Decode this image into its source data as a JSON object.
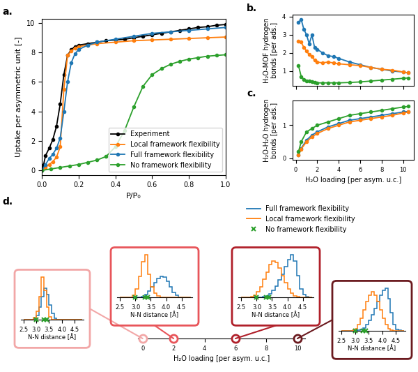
{
  "chart_data": [
    {
      "type": "line",
      "title": "a.",
      "xlabel": "P/P₀",
      "ylabel": "Uptake per asymmetric unit [-]",
      "xlim": [
        0.0,
        1.0
      ],
      "ylim": [
        -0.3,
        10.3
      ],
      "xticks": [
        0.0,
        0.2,
        0.4,
        0.6,
        0.8,
        1.0
      ],
      "yticks": [
        0,
        2,
        4,
        6,
        8,
        10
      ],
      "legend": "lower right",
      "series": [
        {
          "name": "Experiment",
          "color": "#000000",
          "marker": "o",
          "x": [
            0,
            0.01,
            0.02,
            0.04,
            0.06,
            0.08,
            0.1,
            0.12,
            0.14,
            0.16,
            0.18,
            0.2,
            0.25,
            0.3,
            0.35,
            0.4,
            0.45,
            0.5,
            0.55,
            0.6,
            0.65,
            0.7,
            0.75,
            0.8,
            0.85,
            0.9,
            0.95,
            1.0
          ],
          "values": [
            0,
            0.4,
            1.0,
            1.5,
            2.1,
            3.0,
            4.5,
            6.5,
            7.8,
            8.2,
            8.4,
            8.5,
            8.6,
            8.7,
            8.8,
            8.85,
            8.9,
            9.0,
            9.1,
            9.2,
            9.3,
            9.4,
            9.5,
            9.6,
            9.7,
            9.75,
            9.85,
            9.9
          ]
        },
        {
          "name": "Local framework flexibility",
          "color": "#ff7f0e",
          "marker": "o",
          "x": [
            0,
            0.02,
            0.04,
            0.06,
            0.08,
            0.1,
            0.12,
            0.14,
            0.16,
            0.18,
            0.2,
            0.25,
            0.3,
            0.4,
            0.5,
            0.6,
            0.7,
            0.8,
            0.9,
            1.0
          ],
          "values": [
            0,
            0.2,
            0.4,
            0.6,
            0.9,
            1.6,
            5.5,
            7.8,
            8.1,
            8.3,
            8.4,
            8.5,
            8.6,
            8.7,
            8.8,
            8.85,
            8.9,
            8.95,
            9.0,
            9.05
          ]
        },
        {
          "name": "Full framework flexibility",
          "color": "#1f77b4",
          "marker": "o",
          "x": [
            0,
            0.02,
            0.04,
            0.06,
            0.08,
            0.1,
            0.12,
            0.14,
            0.16,
            0.18,
            0.2,
            0.25,
            0.3,
            0.4,
            0.5,
            0.6,
            0.7,
            0.8,
            0.9,
            1.0
          ],
          "values": [
            0,
            0.4,
            0.8,
            1.1,
            1.5,
            2.2,
            4.0,
            6.0,
            7.3,
            7.9,
            8.2,
            8.5,
            8.7,
            8.9,
            9.1,
            9.3,
            9.4,
            9.5,
            9.6,
            9.7
          ]
        },
        {
          "name": "No framework flexibility",
          "color": "#2ca02c",
          "marker": "o",
          "x": [
            0,
            0.05,
            0.1,
            0.15,
            0.2,
            0.25,
            0.3,
            0.35,
            0.4,
            0.45,
            0.5,
            0.55,
            0.6,
            0.65,
            0.7,
            0.75,
            0.8,
            0.85,
            0.9,
            0.95,
            1.0
          ],
          "values": [
            0,
            0.1,
            0.2,
            0.3,
            0.4,
            0.55,
            0.7,
            0.95,
            1.6,
            2.7,
            4.3,
            5.7,
            6.5,
            6.9,
            7.2,
            7.4,
            7.55,
            7.65,
            7.75,
            7.8,
            7.85
          ]
        }
      ]
    },
    {
      "type": "line",
      "title": "b.",
      "ylabel": "H₂O-MOF hydrogen\nbonds [per ads.]",
      "xlim": [
        -0.3,
        11
      ],
      "ylim": [
        0.2,
        4.1
      ],
      "xticks": [
        0,
        2,
        4,
        6,
        8,
        10
      ],
      "yticks": [
        1,
        2,
        3,
        4
      ],
      "tick_labels": "y",
      "series": [
        {
          "color": "#1f77b4",
          "marker": "o",
          "x": [
            0.25,
            0.5,
            0.75,
            1,
            1.25,
            1.5,
            1.75,
            2,
            2.5,
            3,
            3.5,
            4,
            5,
            6,
            7,
            8,
            9,
            10,
            10.5
          ],
          "values": [
            3.7,
            3.85,
            3.3,
            3.0,
            2.5,
            3.0,
            2.3,
            2.2,
            2.0,
            1.85,
            1.8,
            1.7,
            1.5,
            1.35,
            1.2,
            1.1,
            1.0,
            0.95,
            0.9
          ]
        },
        {
          "color": "#ff7f0e",
          "marker": "o",
          "x": [
            0.25,
            0.5,
            0.75,
            1,
            1.25,
            1.5,
            1.75,
            2,
            2.5,
            3,
            3.5,
            4,
            5,
            6,
            7,
            8,
            9,
            10,
            10.5
          ],
          "values": [
            2.65,
            2.6,
            2.3,
            2.1,
            1.9,
            1.8,
            1.6,
            1.5,
            1.45,
            1.5,
            1.45,
            1.4,
            1.35,
            1.3,
            1.2,
            1.1,
            1.05,
            0.95,
            0.9
          ]
        },
        {
          "color": "#2ca02c",
          "marker": "o",
          "x": [
            0.25,
            0.5,
            0.75,
            1,
            1.25,
            1.5,
            1.75,
            2,
            2.5,
            3,
            3.5,
            4,
            5,
            6,
            7,
            8,
            9,
            10,
            10.5
          ],
          "values": [
            1.3,
            0.7,
            0.55,
            0.45,
            0.45,
            0.4,
            0.38,
            0.35,
            0.35,
            0.35,
            0.35,
            0.35,
            0.37,
            0.4,
            0.45,
            0.5,
            0.55,
            0.6,
            0.62
          ]
        }
      ]
    },
    {
      "type": "line",
      "title": "c.",
      "xlabel": "H₂O loading [per asym. u.c.]",
      "ylabel": "H₂O-H₂O hydrogen\nbonds [per ads.]",
      "xlim": [
        -0.3,
        11
      ],
      "ylim": [
        -0.05,
        1.75
      ],
      "xticks": [
        0,
        2,
        4,
        6,
        8,
        10
      ],
      "yticks": [
        0,
        1
      ],
      "series": [
        {
          "color": "#1f77b4",
          "marker": "o",
          "x": [
            0.25,
            0.5,
            1,
            1.5,
            2,
            3,
            4,
            5,
            6,
            7,
            8,
            9,
            10,
            10.5
          ],
          "values": [
            0.1,
            0.3,
            0.55,
            0.7,
            0.8,
            0.95,
            1.05,
            1.15,
            1.2,
            1.25,
            1.3,
            1.35,
            1.4,
            1.42
          ]
        },
        {
          "color": "#ff7f0e",
          "marker": "o",
          "x": [
            0.25,
            0.5,
            1,
            1.5,
            2,
            3,
            4,
            5,
            6,
            7,
            8,
            9,
            10,
            10.5
          ],
          "values": [
            0.1,
            0.28,
            0.5,
            0.65,
            0.75,
            0.9,
            1.0,
            1.1,
            1.15,
            1.2,
            1.25,
            1.3,
            1.37,
            1.4
          ]
        },
        {
          "color": "#2ca02c",
          "marker": "o",
          "x": [
            0.25,
            0.5,
            1,
            1.5,
            2,
            3,
            4,
            5,
            6,
            7,
            8,
            9,
            10,
            10.5
          ],
          "values": [
            0.2,
            0.5,
            0.8,
            0.9,
            1.0,
            1.1,
            1.2,
            1.3,
            1.35,
            1.4,
            1.45,
            1.5,
            1.55,
            1.57
          ]
        }
      ]
    },
    {
      "type": "histogram_panel",
      "title": "d.",
      "xlabel": "H₂O loading [per asym. u.c.]",
      "xlim": [
        -0.3,
        10.5
      ],
      "xticks": [
        0,
        2,
        4,
        6,
        8,
        10
      ],
      "legend": "upper center",
      "bins": [
        2.5,
        2.6,
        2.7,
        2.8,
        2.9,
        3.0,
        3.1,
        3.2,
        3.3,
        3.4,
        3.5,
        3.6,
        3.7,
        3.8,
        3.9,
        4.0,
        4.1,
        4.2,
        4.3,
        4.4,
        4.5,
        4.6,
        4.7,
        4.8
      ],
      "series": [
        {
          "name": "Full framework flexibility",
          "color": "#1f77b4",
          "line_style": "solid"
        },
        {
          "name": "Local framework flexibility",
          "color": "#ff7f0e",
          "line_style": "solid"
        },
        {
          "name": "No framework flexibility",
          "color": "#2ca02c",
          "marker": "x",
          "values": [
            3.0,
            3.3,
            3.4
          ]
        }
      ],
      "insets": [
        {
          "loading": 0,
          "color": "#f2a7a7",
          "xlabel": "N-N distance [Å]",
          "xlim": [
            2.4,
            4.85
          ],
          "xticks": [
            2.5,
            3.0,
            3.5,
            4.0,
            4.5
          ],
          "tick_labels": "x",
          "series": [
            {
              "name": "Full framework flexibility",
              "counts": [
                0,
                0,
                0,
                0,
                0.02,
                0.1,
                0.3,
                0.55,
                0.75,
                0.6,
                0.35,
                0.15,
                0.04,
                0.01,
                0,
                0,
                0,
                0,
                0,
                0,
                0,
                0,
                0
              ]
            },
            {
              "name": "Local framework flexibility",
              "counts": [
                0,
                0,
                0,
                0,
                0.05,
                0.2,
                0.55,
                1.0,
                0.7,
                0.3,
                0.08,
                0.01,
                0,
                0,
                0,
                0,
                0,
                0,
                0,
                0,
                0,
                0,
                0
              ]
            }
          ]
        },
        {
          "loading": 2,
          "color": "#e8555a",
          "xlabel": "N-N distance [Å]",
          "xlim": [
            2.4,
            4.85
          ],
          "xticks": [
            2.5,
            3.0,
            3.5,
            4.0,
            4.5
          ],
          "tick_labels": "x",
          "series": [
            {
              "name": "Full framework flexibility",
              "counts": [
                0,
                0,
                0,
                0,
                0,
                0,
                0.01,
                0.03,
                0.08,
                0.15,
                0.25,
                0.35,
                0.45,
                0.5,
                0.48,
                0.38,
                0.25,
                0.12,
                0.05,
                0.01,
                0,
                0,
                0
              ]
            },
            {
              "name": "Local framework flexibility",
              "counts": [
                0,
                0,
                0,
                0.01,
                0.05,
                0.2,
                0.5,
                0.85,
                1.0,
                0.55,
                0.25,
                0.1,
                0.04,
                0.01,
                0,
                0,
                0,
                0,
                0,
                0,
                0,
                0,
                0
              ]
            }
          ]
        },
        {
          "loading": 6,
          "color": "#b0202a",
          "xlabel": "N-N distance [Å]",
          "xlim": [
            2.4,
            4.85
          ],
          "xticks": [
            2.5,
            3.0,
            3.5,
            4.0,
            4.5
          ],
          "tick_labels": "x",
          "series": [
            {
              "name": "Full framework flexibility",
              "counts": [
                0,
                0,
                0,
                0,
                0,
                0,
                0,
                0.01,
                0.02,
                0.05,
                0.1,
                0.16,
                0.24,
                0.32,
                0.42,
                0.52,
                0.58,
                0.5,
                0.3,
                0.12,
                0.04,
                0.01,
                0
              ]
            },
            {
              "name": "Local framework flexibility",
              "counts": [
                0,
                0,
                0,
                0.01,
                0.03,
                0.08,
                0.15,
                0.25,
                0.35,
                0.45,
                0.5,
                0.48,
                0.4,
                0.3,
                0.2,
                0.12,
                0.06,
                0.02,
                0.01,
                0,
                0,
                0,
                0
              ]
            }
          ]
        },
        {
          "loading": 10,
          "color": "#6b1a1f",
          "xlabel": "N-N distance [Å]",
          "xlim": [
            2.4,
            4.85
          ],
          "xticks": [
            2.5,
            3.0,
            3.5,
            4.0,
            4.5
          ],
          "tick_labels": "x",
          "series": [
            {
              "name": "Full framework flexibility",
              "counts": [
                0,
                0,
                0,
                0,
                0,
                0,
                0.01,
                0.02,
                0.05,
                0.1,
                0.16,
                0.25,
                0.35,
                0.45,
                0.55,
                0.62,
                0.65,
                0.5,
                0.28,
                0.1,
                0.03,
                0.01,
                0
              ]
            },
            {
              "name": "Local framework flexibility",
              "counts": [
                0,
                0,
                0,
                0,
                0.01,
                0.04,
                0.1,
                0.2,
                0.32,
                0.45,
                0.55,
                0.6,
                0.55,
                0.45,
                0.32,
                0.2,
                0.1,
                0.04,
                0.01,
                0,
                0,
                0,
                0
              ]
            }
          ]
        }
      ]
    }
  ]
}
